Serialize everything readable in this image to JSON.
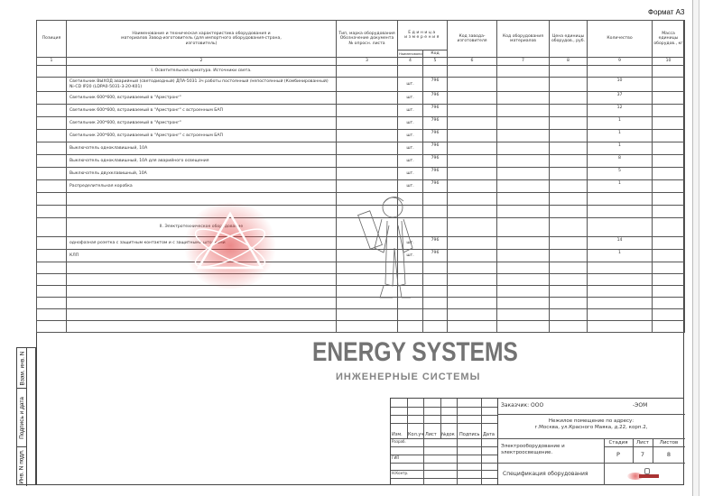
{
  "format_label": "Формат А3",
  "header": {
    "position": "Позиция",
    "name": "Наименование и техническая характеристика оборудования и материалов Завод-изготовитель (для импортного оборудования-страна, изготовитель)",
    "type": "Тип, марка оборудования Обозначение документа № опросн. листа",
    "unit_group": "Единица измерения",
    "unit_name": "Наименование",
    "unit_code": "Код",
    "maker_code": "Код завода-изготовителя",
    "equip_code": "Код оборудования материалов",
    "price": "Цена единицы оборудов., руб.",
    "qty": "Количество",
    "mass": "Масса единицы оборудов., кг",
    "numbers": [
      "1",
      "2",
      "3",
      "4",
      "5",
      "6",
      "7",
      "8",
      "9",
      "10"
    ]
  },
  "rows": [
    {
      "kind": "section",
      "name": "I. Осветительная арматура. Источники света."
    },
    {
      "kind": "item",
      "name": "Светильник ВЫХОД аварийный (светодиодный) ДПА-5031 3ч работы постоянный /непостоянный (Комбинированный) Ni-CD IP20 (LDPA0-5031-3-20-K01)",
      "unit": "шт.",
      "code": "796",
      "qty": "10"
    },
    {
      "kind": "item",
      "name": "Светильник 600*600, встраиваемый в \"Армстронг\"",
      "unit": "шт.",
      "code": "796",
      "qty": "37"
    },
    {
      "kind": "item",
      "name": "Светильник 600*600, встраиваемый в \"Армстронг\" с встроенным БАП",
      "unit": "шт.",
      "code": "796",
      "qty": "12"
    },
    {
      "kind": "item",
      "name": "Светильник 200*600, встраиваемый в \"Армстронг\"",
      "unit": "шт.",
      "code": "796",
      "qty": "1"
    },
    {
      "kind": "item",
      "name": "Светильник 200*600, встраиваемый в \"Армстронг\" с встроенным БАП",
      "unit": "шт.",
      "code": "796",
      "qty": "1"
    },
    {
      "kind": "item",
      "name": "Выключатель одноклавишный, 10А",
      "unit": "шт.",
      "code": "796",
      "qty": "1"
    },
    {
      "kind": "item",
      "name": "Выключатель одноклавишный, 10А для аварийного освещения",
      "unit": "шт.",
      "code": "796",
      "qty": "8"
    },
    {
      "kind": "item",
      "name": "Выключатель двухклавишный, 10А",
      "unit": "шт.",
      "code": "796",
      "qty": "5"
    },
    {
      "kind": "item",
      "name": "Распределительная коробка",
      "unit": "шт.",
      "code": "796",
      "qty": "1"
    },
    {
      "kind": "empty"
    },
    {
      "kind": "empty"
    },
    {
      "kind": "section",
      "name": "II. Электротехническое оборудование"
    },
    {
      "kind": "item",
      "name": "однофазная розетка с защитным контактом и с защитными шторками",
      "unit": "шт.",
      "code": "796",
      "qty": "14"
    },
    {
      "kind": "item",
      "name": "КЛП",
      "unit": "шт.",
      "code": "796",
      "qty": "1"
    },
    {
      "kind": "empty"
    },
    {
      "kind": "empty"
    },
    {
      "kind": "empty"
    },
    {
      "kind": "empty"
    },
    {
      "kind": "empty"
    },
    {
      "kind": "empty"
    }
  ],
  "left_strip": {
    "replace": "Взам. инв. N",
    "signature": "Подпись и дата",
    "inv": "Инв. N подл."
  },
  "stamp": {
    "cols": [
      "Изм.",
      "Кол.уч",
      "Лист",
      "№док",
      "Подпись",
      "Дата"
    ],
    "roles": [
      "Разраб.",
      "ГИП",
      "Н.Контр."
    ],
    "customer": "Заказчик: ООО",
    "code": "-ЭОМ",
    "address_1": "Нежилое помещение по адресу:",
    "address_2": "г.Москва, ул.Красного Маяка, д.22, корп.2,",
    "section": "Электрооборудование и электроосвещение.",
    "stage_label": "Стадия",
    "sheet_label": "Лист",
    "sheets_label": "Листов",
    "stage": "Р",
    "sheet": "7",
    "sheets": "8",
    "doc_title": "Спецификация оборудования"
  },
  "watermark": {
    "brand": "ENERGY SYSTEMS",
    "tagline": "ИНЖЕНЕРНЫЕ СИСТЕМЫ",
    "color": "#d83030"
  }
}
